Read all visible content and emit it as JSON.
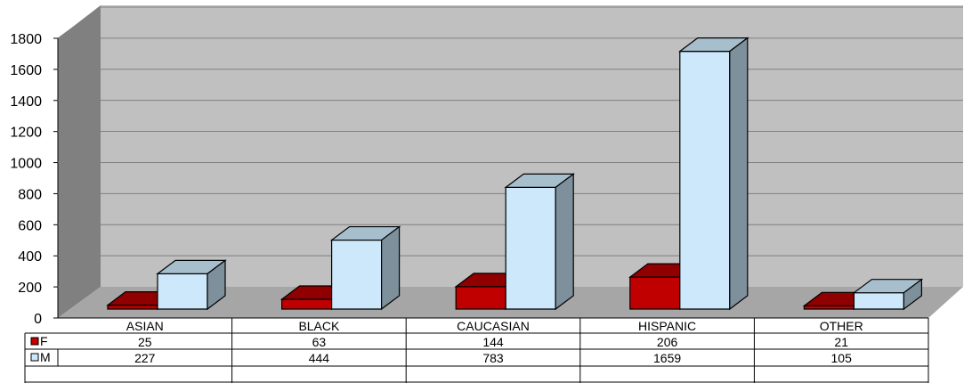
{
  "chart_data": {
    "type": "bar",
    "categories": [
      "ASIAN",
      "BLACK",
      "CAUCASIAN",
      "HISPANIC",
      "OTHER"
    ],
    "series": [
      {
        "name": "F",
        "values": [
          25,
          63,
          144,
          206,
          21
        ],
        "color": "#C00000"
      },
      {
        "name": "M",
        "values": [
          227,
          444,
          783,
          1659,
          105
        ],
        "color": "#CCE8FA"
      }
    ],
    "yticks": [
      "0",
      "200",
      "400",
      "600",
      "800",
      "1000",
      "1200",
      "1400",
      "1600",
      "1800"
    ],
    "ylim": [
      0,
      1800
    ],
    "grid": true,
    "legend": "data-table-left",
    "style": "3d-column-with-data-table",
    "colors": {
      "wall": "#C0C0C0",
      "side_wall": "#808080",
      "floor": "#A6A6A6",
      "grid": "#808080"
    }
  }
}
